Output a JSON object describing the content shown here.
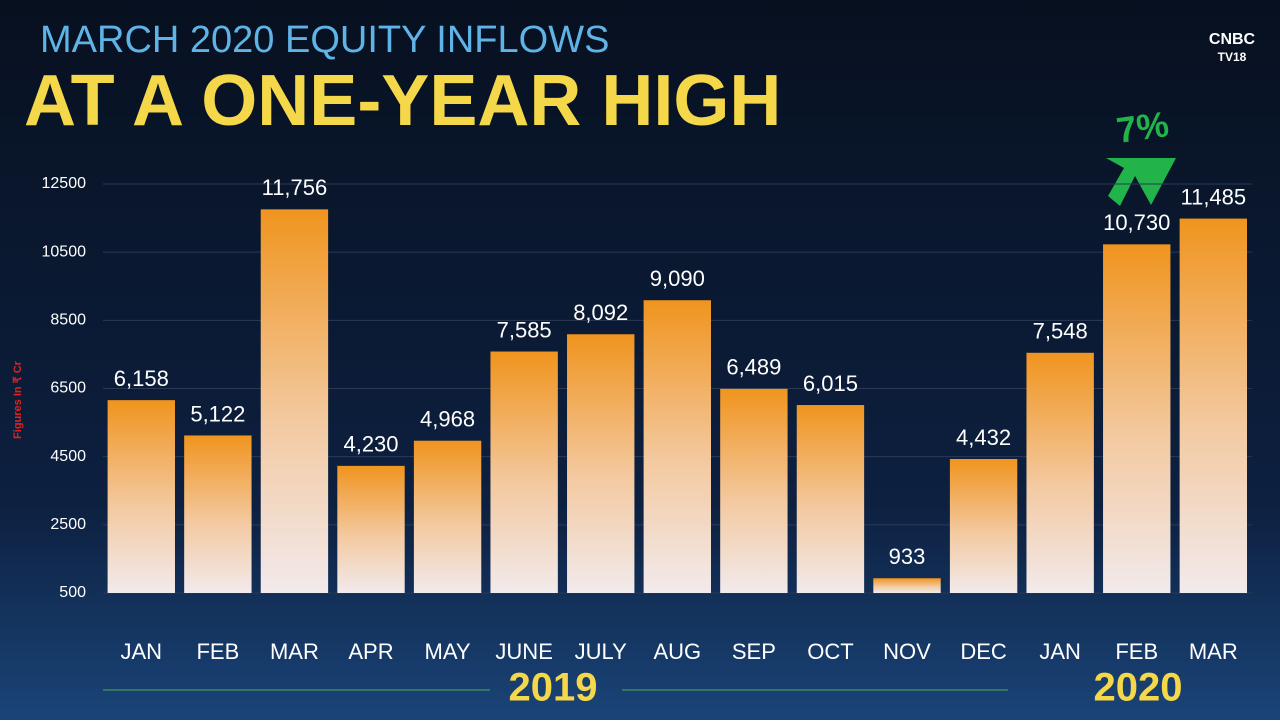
{
  "chart_data": {
    "type": "bar",
    "title": "MARCH 2020 EQUITY INFLOWS",
    "subtitle": "AT A ONE-YEAR HIGH",
    "y_label": "Figures In ₹ Cr",
    "categories": [
      "JAN",
      "FEB",
      "MAR",
      "APR",
      "MAY",
      "JUNE",
      "JULY",
      "AUG",
      "SEP",
      "OCT",
      "NOV",
      "DEC",
      "JAN",
      "FEB",
      "MAR"
    ],
    "values": [
      6158,
      5122,
      11756,
      4230,
      4968,
      7585,
      8092,
      9090,
      6489,
      6015,
      933,
      4432,
      7548,
      10730,
      11485
    ],
    "value_labels": [
      "6,158",
      "5,122",
      "11,756",
      "4,230",
      "4,968",
      "7,585",
      "8,092",
      "9,090",
      "6,489",
      "6,015",
      "933",
      "4,432",
      "7,548",
      "10,730",
      "11,485"
    ],
    "color": "#f0941e",
    "ylim": [
      500,
      12500
    ],
    "yticks": [
      500,
      2500,
      4500,
      6500,
      8500,
      10500,
      12500
    ],
    "grid": true,
    "annotation": "7%",
    "year_labels": [
      "2019",
      "2020"
    ]
  },
  "logo": [
    "CNBC",
    "TV18"
  ]
}
